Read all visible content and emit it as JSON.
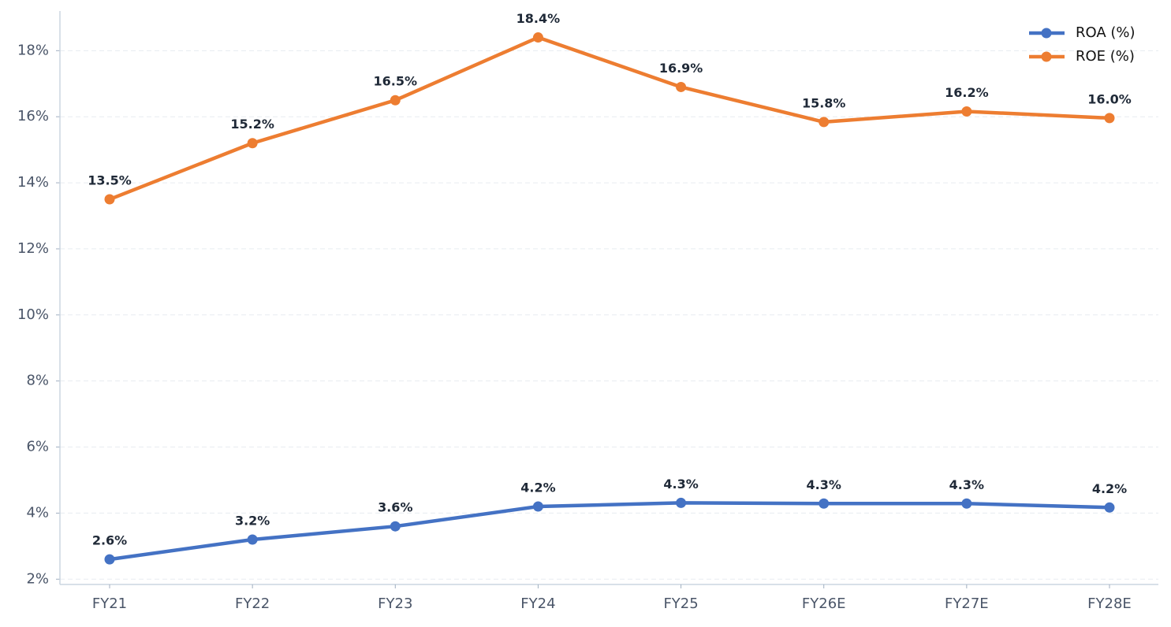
{
  "chart_data": {
    "type": "line",
    "categories": [
      "FY21",
      "FY22",
      "FY23",
      "FY24",
      "FY25",
      "FY26E",
      "FY27E",
      "FY28E"
    ],
    "series": [
      {
        "name": "ROA (%)",
        "color": "#4472c4",
        "values": [
          2.6,
          3.2,
          3.6,
          4.2,
          4.31,
          4.29,
          4.29,
          4.17
        ],
        "value_labels": [
          "2.6%",
          "3.2%",
          "3.6%",
          "4.2%",
          "4.3%",
          "4.3%",
          "4.3%",
          "4.2%"
        ]
      },
      {
        "name": "ROE (%)",
        "color": "#ed7d31",
        "values": [
          13.5,
          15.2,
          16.5,
          18.4,
          16.9,
          15.84,
          16.16,
          15.96
        ],
        "value_labels": [
          "13.5%",
          "15.2%",
          "16.5%",
          "18.4%",
          "16.9%",
          "15.8%",
          "16.2%",
          "16.0%"
        ]
      }
    ],
    "ylim": [
      1.84,
      19.2
    ],
    "yticks": [
      {
        "value": 2,
        "label": "2%"
      },
      {
        "value": 4,
        "label": "4%"
      },
      {
        "value": 6,
        "label": "6%"
      },
      {
        "value": 8,
        "label": "8%"
      },
      {
        "value": 10,
        "label": "10%"
      },
      {
        "value": 12,
        "label": "12%"
      },
      {
        "value": 14,
        "label": "14%"
      },
      {
        "value": 16,
        "label": "16%"
      },
      {
        "value": 18,
        "label": "18%"
      }
    ],
    "grid": true,
    "legend": "upper right"
  }
}
